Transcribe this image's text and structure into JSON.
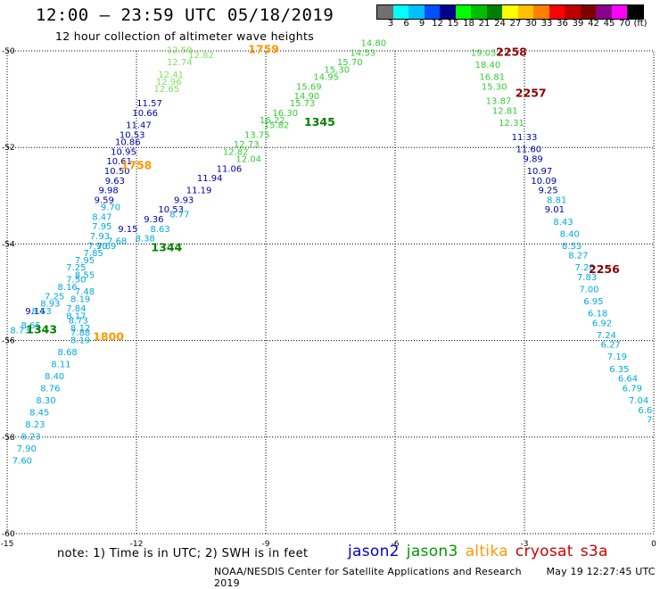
{
  "header": {
    "title": "12:00 – 23:59 UTC 05/18/2019",
    "subtitle": "12 hour collection of altimeter wave heights"
  },
  "color_scale": {
    "labels": [
      "3",
      "6",
      "9",
      "12",
      "15",
      "18",
      "21",
      "24",
      "27",
      "30",
      "33",
      "36",
      "39",
      "42",
      "45",
      "70",
      "(ft)"
    ],
    "colors": [
      "#707070",
      "#00ffff",
      "#00bfff",
      "#0050ff",
      "#00008b",
      "#00ff00",
      "#00bf00",
      "#008000",
      "#ffff00",
      "#ffc000",
      "#ff8000",
      "#ff0000",
      "#c00000",
      "#800000",
      "#8b008b",
      "#ff00ff",
      "#000000"
    ]
  },
  "axes": {
    "x_ticks": [
      "-15",
      "-12",
      "-9",
      "-6",
      "-3",
      "0"
    ],
    "y_ticks": [
      "-50",
      "-52",
      "-54",
      "-56",
      "-58",
      "-60"
    ]
  },
  "time_labels": [
    {
      "text": "1759",
      "color": "#ff9900",
      "lon": -9.05,
      "lat": -50.05
    },
    {
      "text": "1758",
      "color": "#ff9900",
      "lon": -12.0,
      "lat": -52.45
    },
    {
      "text": "1800",
      "color": "#ff9900",
      "lon": -12.65,
      "lat": -56.0
    },
    {
      "text": "1345",
      "color": "#008000",
      "lon": -7.75,
      "lat": -51.55
    },
    {
      "text": "1344",
      "color": "#008000",
      "lon": -11.3,
      "lat": -54.15
    },
    {
      "text": "1343",
      "color": "#008000",
      "lon": -14.2,
      "lat": -55.85
    },
    {
      "text": "2258",
      "color": "#8b0000",
      "lon": -3.3,
      "lat": -50.1
    },
    {
      "text": "2257",
      "color": "#8b0000",
      "lon": -2.85,
      "lat": -50.95
    },
    {
      "text": "2256",
      "color": "#8b0000",
      "lon": -1.15,
      "lat": -54.6
    }
  ],
  "tracks": [
    {
      "name": "altika",
      "color": "#80e060",
      "points": [
        {
          "v": "12.59",
          "lon": -11.0,
          "lat": -50.05
        },
        {
          "v": "12.82",
          "lon": -10.5,
          "lat": -50.15
        },
        {
          "v": "12.74",
          "lon": -11.0,
          "lat": -50.3
        },
        {
          "v": "12.41",
          "lon": -11.2,
          "lat": -50.55
        },
        {
          "v": "12.96",
          "lon": -11.25,
          "lat": -50.7
        },
        {
          "v": "12.65",
          "lon": -11.3,
          "lat": -50.85
        }
      ]
    },
    {
      "name": "jason2",
      "color": "#0000aa",
      "points": [
        {
          "v": "11.57",
          "lon": -11.7,
          "lat": -51.15
        },
        {
          "v": "10.66",
          "lon": -11.8,
          "lat": -51.35
        },
        {
          "v": "11.47",
          "lon": -11.95,
          "lat": -51.6
        },
        {
          "v": "10.53",
          "lon": -12.1,
          "lat": -51.8
        },
        {
          "v": "10.86",
          "lon": -12.2,
          "lat": -51.95
        },
        {
          "v": "10.95",
          "lon": -12.3,
          "lat": -52.15
        },
        {
          "v": "10.61",
          "lon": -12.4,
          "lat": -52.35
        },
        {
          "v": "10.50",
          "lon": -12.45,
          "lat": -52.55
        },
        {
          "v": "9.63",
          "lon": -12.5,
          "lat": -52.75
        },
        {
          "v": "9.98",
          "lon": -12.65,
          "lat": -52.95
        },
        {
          "v": "9.59",
          "lon": -12.75,
          "lat": -53.15
        },
        {
          "v": "9.15",
          "lon": -12.2,
          "lat": -53.75
        },
        {
          "v": "9.14",
          "lon": -14.35,
          "lat": -55.45
        },
        {
          "v": "11.06",
          "lon": -9.85,
          "lat": -52.5
        },
        {
          "v": "11.94",
          "lon": -10.3,
          "lat": -52.7
        },
        {
          "v": "11.19",
          "lon": -10.55,
          "lat": -52.95
        },
        {
          "v": "9.93",
          "lon": -10.9,
          "lat": -53.15
        },
        {
          "v": "10.53",
          "lon": -11.2,
          "lat": -53.35
        },
        {
          "v": "9.36",
          "lon": -11.6,
          "lat": -53.55
        },
        {
          "v": "11.33",
          "lon": -3.0,
          "lat": -51.85
        },
        {
          "v": "11.60",
          "lon": -2.9,
          "lat": -52.1
        },
        {
          "v": "9.89",
          "lon": -2.8,
          "lat": -52.3
        },
        {
          "v": "10.97",
          "lon": -2.65,
          "lat": -52.55
        },
        {
          "v": "10.09",
          "lon": -2.55,
          "lat": -52.75
        },
        {
          "v": "9.25",
          "lon": -2.45,
          "lat": -52.95
        },
        {
          "v": "9.01",
          "lon": -2.3,
          "lat": -53.35
        }
      ]
    },
    {
      "name": "jason3_light",
      "color": "#33cc33",
      "points": [
        {
          "v": "14.80",
          "lon": -6.5,
          "lat": -49.9
        },
        {
          "v": "14.53",
          "lon": -6.75,
          "lat": -50.1
        },
        {
          "v": "15.70",
          "lon": -7.05,
          "lat": -50.3
        },
        {
          "v": "15.30",
          "lon": -7.35,
          "lat": -50.45
        },
        {
          "v": "14.95",
          "lon": -7.6,
          "lat": -50.6
        },
        {
          "v": "15.69",
          "lon": -8.0,
          "lat": -50.8
        },
        {
          "v": "14.90",
          "lon": -8.05,
          "lat": -51.0
        },
        {
          "v": "15.73",
          "lon": -8.15,
          "lat": -51.15
        },
        {
          "v": "16.30",
          "lon": -8.55,
          "lat": -51.35
        },
        {
          "v": "16.22",
          "lon": -8.85,
          "lat": -51.5
        },
        {
          "v": "15.82",
          "lon": -8.75,
          "lat": -51.6
        },
        {
          "v": "13.75",
          "lon": -9.2,
          "lat": -51.8
        },
        {
          "v": "12.73",
          "lon": -9.45,
          "lat": -52.0
        },
        {
          "v": "12.82",
          "lon": -9.7,
          "lat": -52.15
        },
        {
          "v": "12.04",
          "lon": -9.4,
          "lat": -52.3
        },
        {
          "v": "19.05",
          "lon": -3.95,
          "lat": -50.1
        },
        {
          "v": "18.40",
          "lon": -3.85,
          "lat": -50.35
        },
        {
          "v": "16.81",
          "lon": -3.75,
          "lat": -50.6
        },
        {
          "v": "15.30",
          "lon": -3.7,
          "lat": -50.8
        },
        {
          "v": "13.87",
          "lon": -3.6,
          "lat": -51.1
        },
        {
          "v": "12.81",
          "lon": -3.45,
          "lat": -51.3
        },
        {
          "v": "12.31",
          "lon": -3.3,
          "lat": -51.55
        }
      ]
    },
    {
      "name": "s3a",
      "color": "#00aadd",
      "points": [
        {
          "v": "8.81",
          "lon": -2.25,
          "lat": -53.15
        },
        {
          "v": "8.43",
          "lon": -2.1,
          "lat": -53.6
        },
        {
          "v": "8.40",
          "lon": -1.95,
          "lat": -53.85
        },
        {
          "v": "8.53",
          "lon": -1.9,
          "lat": -54.1
        },
        {
          "v": "8.27",
          "lon": -1.75,
          "lat": -54.3
        },
        {
          "v": "7.28",
          "lon": -1.6,
          "lat": -54.55
        },
        {
          "v": "7.83",
          "lon": -1.55,
          "lat": -54.75
        },
        {
          "v": "7.00",
          "lon": -1.5,
          "lat": -55.0
        },
        {
          "v": "6.95",
          "lon": -1.4,
          "lat": -55.25
        },
        {
          "v": "6.18",
          "lon": -1.3,
          "lat": -55.5
        },
        {
          "v": "6.92",
          "lon": -1.2,
          "lat": -55.7
        },
        {
          "v": "7.24",
          "lon": -1.1,
          "lat": -55.95
        },
        {
          "v": "6.27",
          "lon": -1.0,
          "lat": -56.15
        },
        {
          "v": "7.19",
          "lon": -0.85,
          "lat": -56.4
        },
        {
          "v": "6.35",
          "lon": -0.8,
          "lat": -56.65
        },
        {
          "v": "6.64",
          "lon": -0.6,
          "lat": -56.85
        },
        {
          "v": "6.79",
          "lon": -0.5,
          "lat": -57.05
        },
        {
          "v": "7.04",
          "lon": -0.35,
          "lat": -57.3
        },
        {
          "v": "6.6",
          "lon": -0.2,
          "lat": -57.5
        },
        {
          "v": "7",
          "lon": -0.1,
          "lat": -57.7
        },
        {
          "v": "9.70",
          "lon": -12.6,
          "lat": -53.3
        },
        {
          "v": "8.47",
          "lon": -12.8,
          "lat": -53.5
        },
        {
          "v": "7.95",
          "lon": -12.8,
          "lat": -53.7
        },
        {
          "v": "7.93",
          "lon": -12.85,
          "lat": -53.9
        },
        {
          "v": "7.90",
          "lon": -12.9,
          "lat": -54.1
        },
        {
          "v": "7.85",
          "lon": -13.0,
          "lat": -54.25
        },
        {
          "v": "7.68",
          "lon": -12.45,
          "lat": -54.0
        },
        {
          "v": "7.69",
          "lon": -12.7,
          "lat": -54.1
        },
        {
          "v": "8.38",
          "lon": -11.8,
          "lat": -53.95
        },
        {
          "v": "8.63",
          "lon": -11.45,
          "lat": -53.75
        },
        {
          "v": "8.77",
          "lon": -11.0,
          "lat": -53.45
        },
        {
          "v": "7.95",
          "lon": -13.2,
          "lat": -54.4
        },
        {
          "v": "7.25",
          "lon": -13.4,
          "lat": -54.55
        },
        {
          "v": "8.55",
          "lon": -13.2,
          "lat": -54.7
        },
        {
          "v": "7.50",
          "lon": -13.4,
          "lat": -54.8
        },
        {
          "v": "8.16",
          "lon": -13.6,
          "lat": -54.95
        },
        {
          "v": "7.48",
          "lon": -13.2,
          "lat": -55.05
        },
        {
          "v": "7.25",
          "lon": -13.9,
          "lat": -55.15
        },
        {
          "v": "8.19",
          "lon": -13.3,
          "lat": -55.2
        },
        {
          "v": "8.93",
          "lon": -14.0,
          "lat": -55.3
        },
        {
          "v": "7.84",
          "lon": -13.4,
          "lat": -55.4
        },
        {
          "v": "8.53",
          "lon": -14.2,
          "lat": -55.45
        },
        {
          "v": "8.17",
          "lon": -13.4,
          "lat": -55.55
        },
        {
          "v": "8.73",
          "lon": -13.35,
          "lat": -55.65
        },
        {
          "v": "8.12",
          "lon": -13.3,
          "lat": -55.8
        },
        {
          "v": "8.65",
          "lon": -14.45,
          "lat": -55.75
        },
        {
          "v": "7.88",
          "lon": -13.3,
          "lat": -55.9
        },
        {
          "v": "8.73",
          "lon": -14.7,
          "lat": -55.85
        },
        {
          "v": "8.19",
          "lon": -13.3,
          "lat": -56.05
        },
        {
          "v": "8.68",
          "lon": -13.6,
          "lat": -56.3
        },
        {
          "v": "8.11",
          "lon": -13.75,
          "lat": -56.55
        },
        {
          "v": "8.40",
          "lon": -13.9,
          "lat": -56.8
        },
        {
          "v": "8.76",
          "lon": -14.0,
          "lat": -57.05
        },
        {
          "v": "8.30",
          "lon": -14.1,
          "lat": -57.3
        },
        {
          "v": "8.45",
          "lon": -14.25,
          "lat": -57.55
        },
        {
          "v": "8.23",
          "lon": -14.35,
          "lat": -57.8
        },
        {
          "v": "8.23",
          "lon": -14.45,
          "lat": -58.05
        },
        {
          "v": "7.90",
          "lon": -14.55,
          "lat": -58.3
        },
        {
          "v": "7.60",
          "lon": -14.65,
          "lat": -58.55
        }
      ]
    }
  ],
  "note": "note: 1) Time is in UTC; 2) SWH is in feet",
  "legend": [
    {
      "label": "jason2",
      "color": "#0000cc"
    },
    {
      "label": "jason3",
      "color": "#009900"
    },
    {
      "label": "altika",
      "color": "#ff9900"
    },
    {
      "label": "cryosat",
      "color": "#cc0000"
    },
    {
      "label": "s3a",
      "color": "#cc0000"
    }
  ],
  "footer": {
    "org": "NOAA/NESDIS Center for Satellite Applications and Research",
    "timestamp": "May 19 12:27:45 UTC 2019"
  }
}
